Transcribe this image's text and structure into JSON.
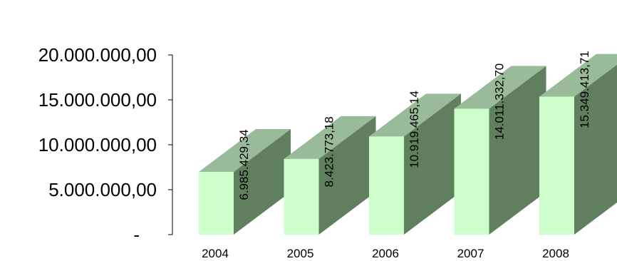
{
  "chart_data": {
    "type": "bar",
    "categories": [
      "2004",
      "2005",
      "2006",
      "2007",
      "2008"
    ],
    "values": [
      6985429.34,
      8423773.18,
      10919465.14,
      14011332.7,
      15349413.71
    ],
    "data_labels": [
      "6.985.429,34",
      "8.423.773,18",
      "10.919.465,14",
      "14.011.332,70",
      "15.349.413,71"
    ],
    "yticks": [
      {
        "value": 0,
        "label": "-"
      },
      {
        "value": 5000000,
        "label": "5.000.000,00"
      },
      {
        "value": 10000000,
        "label": "10.000.000,00"
      },
      {
        "value": 15000000,
        "label": "15.000.000,00"
      },
      {
        "value": 20000000,
        "label": "20.000.000,00"
      }
    ],
    "ylim": [
      0,
      20000000
    ],
    "title": "",
    "xlabel": "",
    "ylabel": "",
    "grid": false,
    "legend": "none",
    "style": "3d-column",
    "colors": {
      "front": "#ccffcc",
      "top": "#99bb99",
      "side": "#5f7f5f",
      "axis": "#000000"
    }
  }
}
